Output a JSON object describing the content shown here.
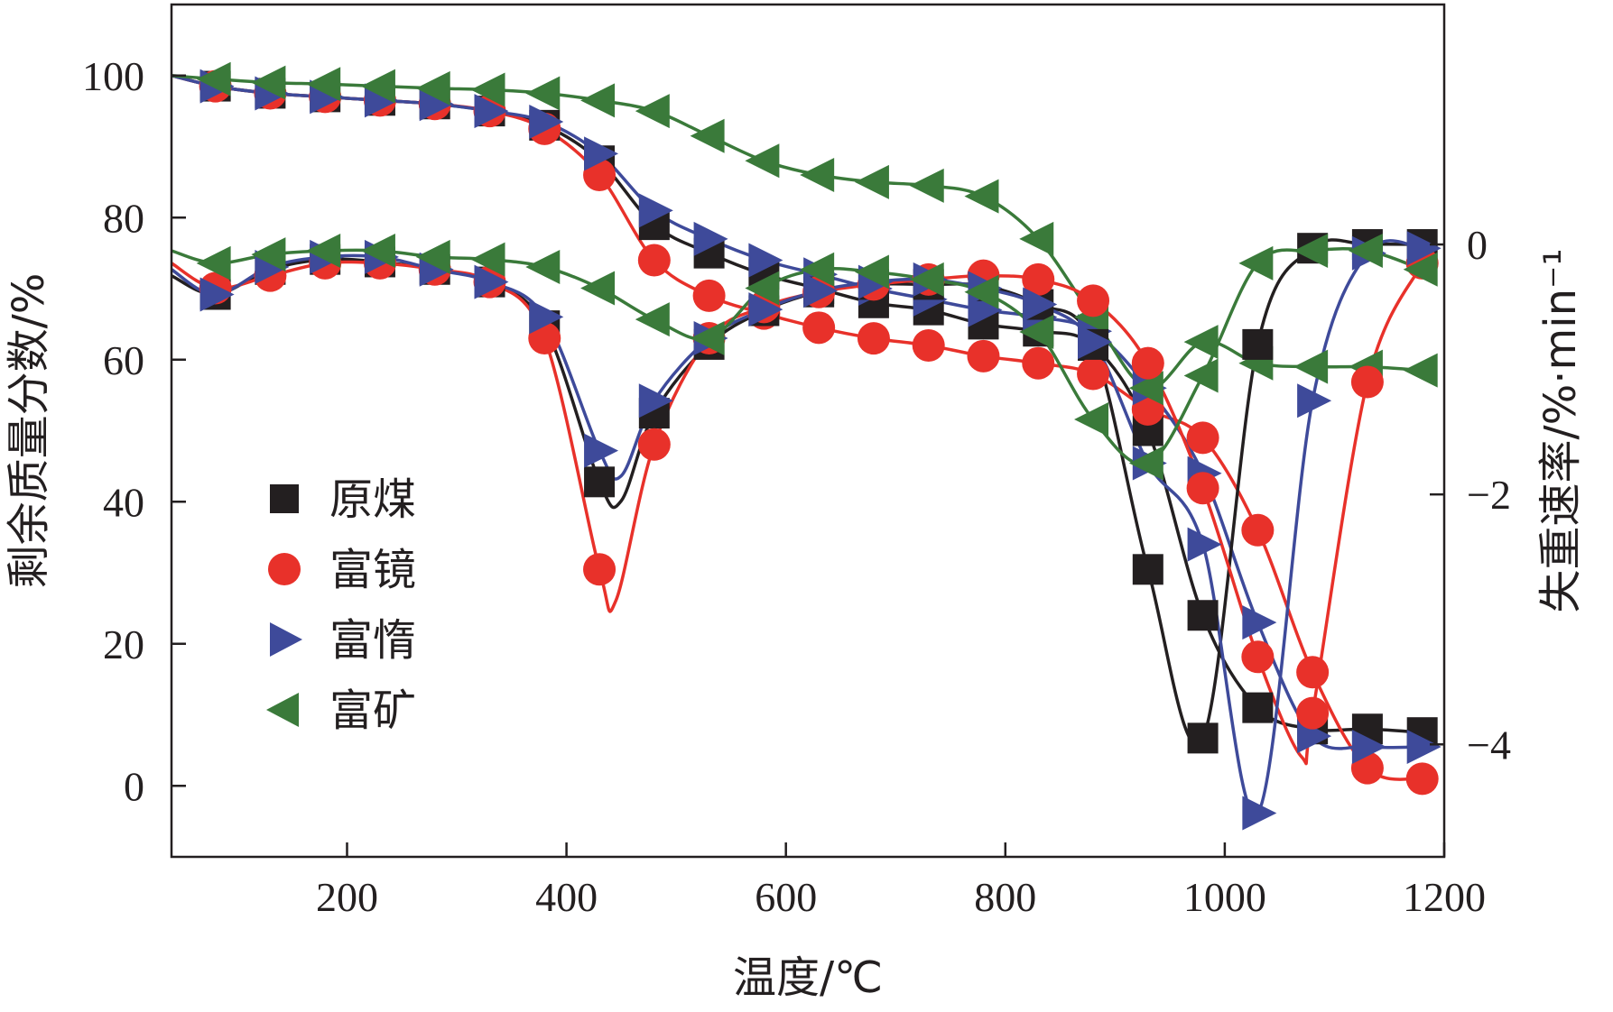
{
  "chart_data": {
    "type": "line",
    "xlabel": "温度/℃",
    "ylabel_left": "剩余质量分数/%",
    "ylabel_right": "失重速率/%·min⁻¹",
    "xlim": [
      40,
      1200
    ],
    "ylim_left": [
      -10,
      110
    ],
    "ylim_right": [
      -4.9,
      1.92
    ],
    "x_ticks": [
      200,
      400,
      600,
      800,
      1000,
      1200
    ],
    "y_left_ticks": [
      0,
      20,
      40,
      60,
      80,
      100
    ],
    "y_right_ticks": [
      0,
      -2,
      -4
    ],
    "legend": {
      "position": "center-left"
    },
    "colors": {
      "原煤": "#231f20",
      "富镜": "#e8312a",
      "富惰": "#3e4a9a",
      "富矿": "#3a7a3a"
    },
    "markers": {
      "原煤": "square",
      "富镜": "circle",
      "富惰": "triangle-right",
      "富矿": "triangle-left"
    },
    "series": [
      {
        "name": "原煤",
        "axis": "left",
        "x": [
          40,
          80,
          130,
          180,
          230,
          280,
          330,
          380,
          430,
          480,
          530,
          580,
          630,
          680,
          730,
          780,
          830,
          880,
          930,
          980,
          1030,
          1080,
          1130,
          1180
        ],
        "y": [
          100,
          98.5,
          97.5,
          97,
          96.5,
          96,
          95,
          93,
          88,
          79,
          75,
          72,
          70,
          68,
          67,
          65,
          64,
          62,
          50,
          24,
          11,
          8,
          8,
          7.5
        ]
      },
      {
        "name": "富镜",
        "axis": "left",
        "x": [
          40,
          80,
          130,
          180,
          230,
          280,
          330,
          380,
          430,
          480,
          530,
          580,
          630,
          680,
          730,
          780,
          830,
          880,
          930,
          980,
          1030,
          1080,
          1130,
          1180
        ],
        "y": [
          100,
          98.5,
          97.5,
          97,
          96.5,
          96,
          95,
          92.5,
          86,
          74,
          69,
          66.5,
          64.5,
          63,
          62,
          60.5,
          59.5,
          58,
          53,
          49,
          36,
          16,
          2.5,
          1
        ]
      },
      {
        "name": "富惰",
        "axis": "left",
        "x": [
          40,
          80,
          130,
          180,
          230,
          280,
          330,
          380,
          430,
          480,
          530,
          580,
          630,
          680,
          730,
          780,
          830,
          880,
          930,
          980,
          1030,
          1080,
          1130,
          1180
        ],
        "y": [
          100,
          98.5,
          97.5,
          97,
          96.5,
          96,
          95,
          93.5,
          89,
          81,
          77,
          74,
          72,
          70,
          68.5,
          67,
          66,
          64,
          56,
          44,
          23,
          7,
          5.5,
          5.5
        ]
      },
      {
        "name": "富矿",
        "axis": "left",
        "x": [
          40,
          80,
          130,
          180,
          230,
          280,
          330,
          380,
          430,
          480,
          530,
          580,
          630,
          680,
          730,
          780,
          830,
          880,
          930,
          980,
          1030,
          1080,
          1130,
          1180
        ],
        "y": [
          100,
          99.5,
          99,
          98.8,
          98.5,
          98.2,
          98,
          97.5,
          96.5,
          95,
          91.5,
          88,
          86,
          85,
          84.5,
          83,
          77,
          66,
          56,
          62.5,
          59.5,
          59,
          59,
          58.5
        ]
      },
      {
        "name": "原煤",
        "axis": "right",
        "x": [
          40,
          80,
          130,
          180,
          230,
          280,
          330,
          380,
          430,
          450,
          480,
          530,
          580,
          630,
          680,
          730,
          780,
          830,
          880,
          930,
          980,
          1030,
          1080,
          1130,
          1180
        ],
        "y": [
          -0.25,
          -0.4,
          -0.2,
          -0.12,
          -0.14,
          -0.2,
          -0.3,
          -0.65,
          -1.9,
          -2.05,
          -1.35,
          -0.8,
          -0.53,
          -0.38,
          -0.32,
          -0.32,
          -0.33,
          -0.48,
          -0.8,
          -2.6,
          -3.95,
          -0.8,
          -0.03,
          0,
          0
        ]
      },
      {
        "name": "富镜",
        "axis": "right",
        "x": [
          40,
          80,
          130,
          180,
          230,
          280,
          330,
          380,
          430,
          445,
          480,
          530,
          580,
          630,
          680,
          730,
          780,
          830,
          880,
          930,
          980,
          1030,
          1070,
          1080,
          1130,
          1180
        ],
        "y": [
          -0.15,
          -0.35,
          -0.25,
          -0.15,
          -0.15,
          -0.2,
          -0.3,
          -0.75,
          -2.6,
          -2.85,
          -1.6,
          -0.75,
          -0.5,
          -0.38,
          -0.32,
          -0.28,
          -0.25,
          -0.28,
          -0.45,
          -0.95,
          -1.95,
          -3.3,
          -4.1,
          -3.75,
          -1.1,
          -0.15
        ]
      },
      {
        "name": "富惰",
        "axis": "right",
        "x": [
          40,
          80,
          130,
          180,
          230,
          280,
          330,
          380,
          430,
          450,
          480,
          530,
          580,
          630,
          680,
          730,
          780,
          830,
          880,
          930,
          980,
          1030,
          1080,
          1130,
          1180
        ],
        "y": [
          -0.2,
          -0.4,
          -0.18,
          -0.1,
          -0.1,
          -0.2,
          -0.3,
          -0.58,
          -1.65,
          -1.85,
          -1.25,
          -0.75,
          -0.52,
          -0.37,
          -0.3,
          -0.28,
          -0.35,
          -0.48,
          -0.78,
          -1.75,
          -2.4,
          -4.55,
          -1.25,
          -0.07,
          -0.03
        ]
      },
      {
        "name": "富矿",
        "axis": "right",
        "x": [
          40,
          80,
          130,
          180,
          230,
          280,
          330,
          380,
          430,
          480,
          530,
          580,
          630,
          680,
          730,
          780,
          830,
          880,
          930,
          980,
          1030,
          1080,
          1130,
          1180
        ],
        "y": [
          -0.05,
          -0.15,
          -0.08,
          -0.05,
          -0.05,
          -0.1,
          -0.12,
          -0.18,
          -0.35,
          -0.6,
          -0.75,
          -0.35,
          -0.2,
          -0.22,
          -0.28,
          -0.38,
          -0.7,
          -1.4,
          -1.75,
          -1.05,
          -0.15,
          -0.05,
          -0.05,
          -0.2
        ]
      }
    ]
  }
}
